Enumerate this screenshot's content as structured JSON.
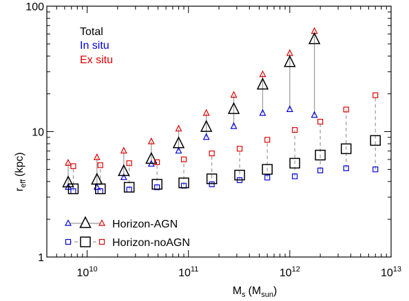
{
  "chart_data": {
    "type": "scatter",
    "xlabel": {
      "main": "M",
      "sub": "s",
      "unit_main": "M",
      "unit_sub": "sun"
    },
    "ylabel": {
      "main": "r",
      "sub": "eff",
      "unit": "(kpc)"
    },
    "xscale": "log",
    "yscale": "log",
    "xlim": [
      4000000000.0,
      10000000000000.0
    ],
    "ylim": [
      1,
      100
    ],
    "x_ticks": [
      {
        "value": 10000000000.0,
        "base": "10",
        "exp": "10"
      },
      {
        "value": 100000000000.0,
        "base": "10",
        "exp": "11"
      },
      {
        "value": 1000000000000.0,
        "base": "10",
        "exp": "12"
      },
      {
        "value": 10000000000000.0,
        "base": "10",
        "exp": "13"
      }
    ],
    "y_ticks": [
      {
        "value": 1,
        "label": "1"
      },
      {
        "value": 10,
        "label": "10"
      },
      {
        "value": 100,
        "label": "100"
      }
    ],
    "component_legend": {
      "placement": "top-left",
      "entries": [
        {
          "label": "Total",
          "color": "#000000"
        },
        {
          "label": "In situ",
          "color": "#0000dd"
        },
        {
          "label": "Ex situ",
          "color": "#dd0000"
        }
      ]
    },
    "simulation_legend": {
      "placement": "bottom-left",
      "entries": [
        {
          "label": "Horizon-AGN",
          "marker": "triangle",
          "connector": "solid"
        },
        {
          "label": "Horizon-noAGN",
          "marker": "square",
          "connector": "dashed"
        }
      ]
    },
    "colors": {
      "total": "#000000",
      "insitu": "#0000dd",
      "exsitu": "#dd0000",
      "connector": "#999999"
    },
    "series": [
      {
        "name": "Horizon-AGN",
        "marker": "triangle",
        "connector": "solid",
        "x": [
          6500000000.0,
          12500000000.0,
          23000000000.0,
          43000000000.0,
          80000000000.0,
          150000000000.0,
          280000000000.0,
          540000000000.0,
          1000000000000.0,
          1750000000000.0
        ],
        "total": [
          3.9,
          4.1,
          4.8,
          6.0,
          8.0,
          10.8,
          15.0,
          23.5,
          35.5,
          54.0
        ],
        "insitu": [
          3.6,
          3.6,
          4.3,
          5.5,
          7.0,
          9.0,
          11.0,
          14.0,
          15.0,
          13.5
        ],
        "exsitu": [
          5.6,
          6.2,
          7.0,
          8.3,
          10.5,
          14.0,
          19.5,
          28.5,
          42.0,
          63.0
        ]
      },
      {
        "name": "Horizon-noAGN",
        "marker": "square",
        "connector": "dashed",
        "x": [
          7300000000.0,
          13500000000.0,
          26000000000.0,
          49000000000.0,
          90000000000.0,
          170000000000.0,
          320000000000.0,
          600000000000.0,
          1120000000000.0,
          2000000000000.0,
          3600000000000.0,
          7000000000000.0
        ],
        "total": [
          3.5,
          3.5,
          3.6,
          3.8,
          3.9,
          4.2,
          4.5,
          5.0,
          5.6,
          6.5,
          7.3,
          8.5
        ],
        "insitu": [
          3.35,
          3.35,
          3.45,
          3.6,
          3.7,
          3.8,
          4.1,
          4.3,
          4.4,
          4.9,
          5.1,
          5.0
        ],
        "exsitu": [
          5.3,
          5.4,
          5.6,
          5.7,
          6.0,
          6.7,
          7.3,
          8.6,
          10.3,
          12.0,
          15.0,
          19.5
        ]
      }
    ]
  }
}
